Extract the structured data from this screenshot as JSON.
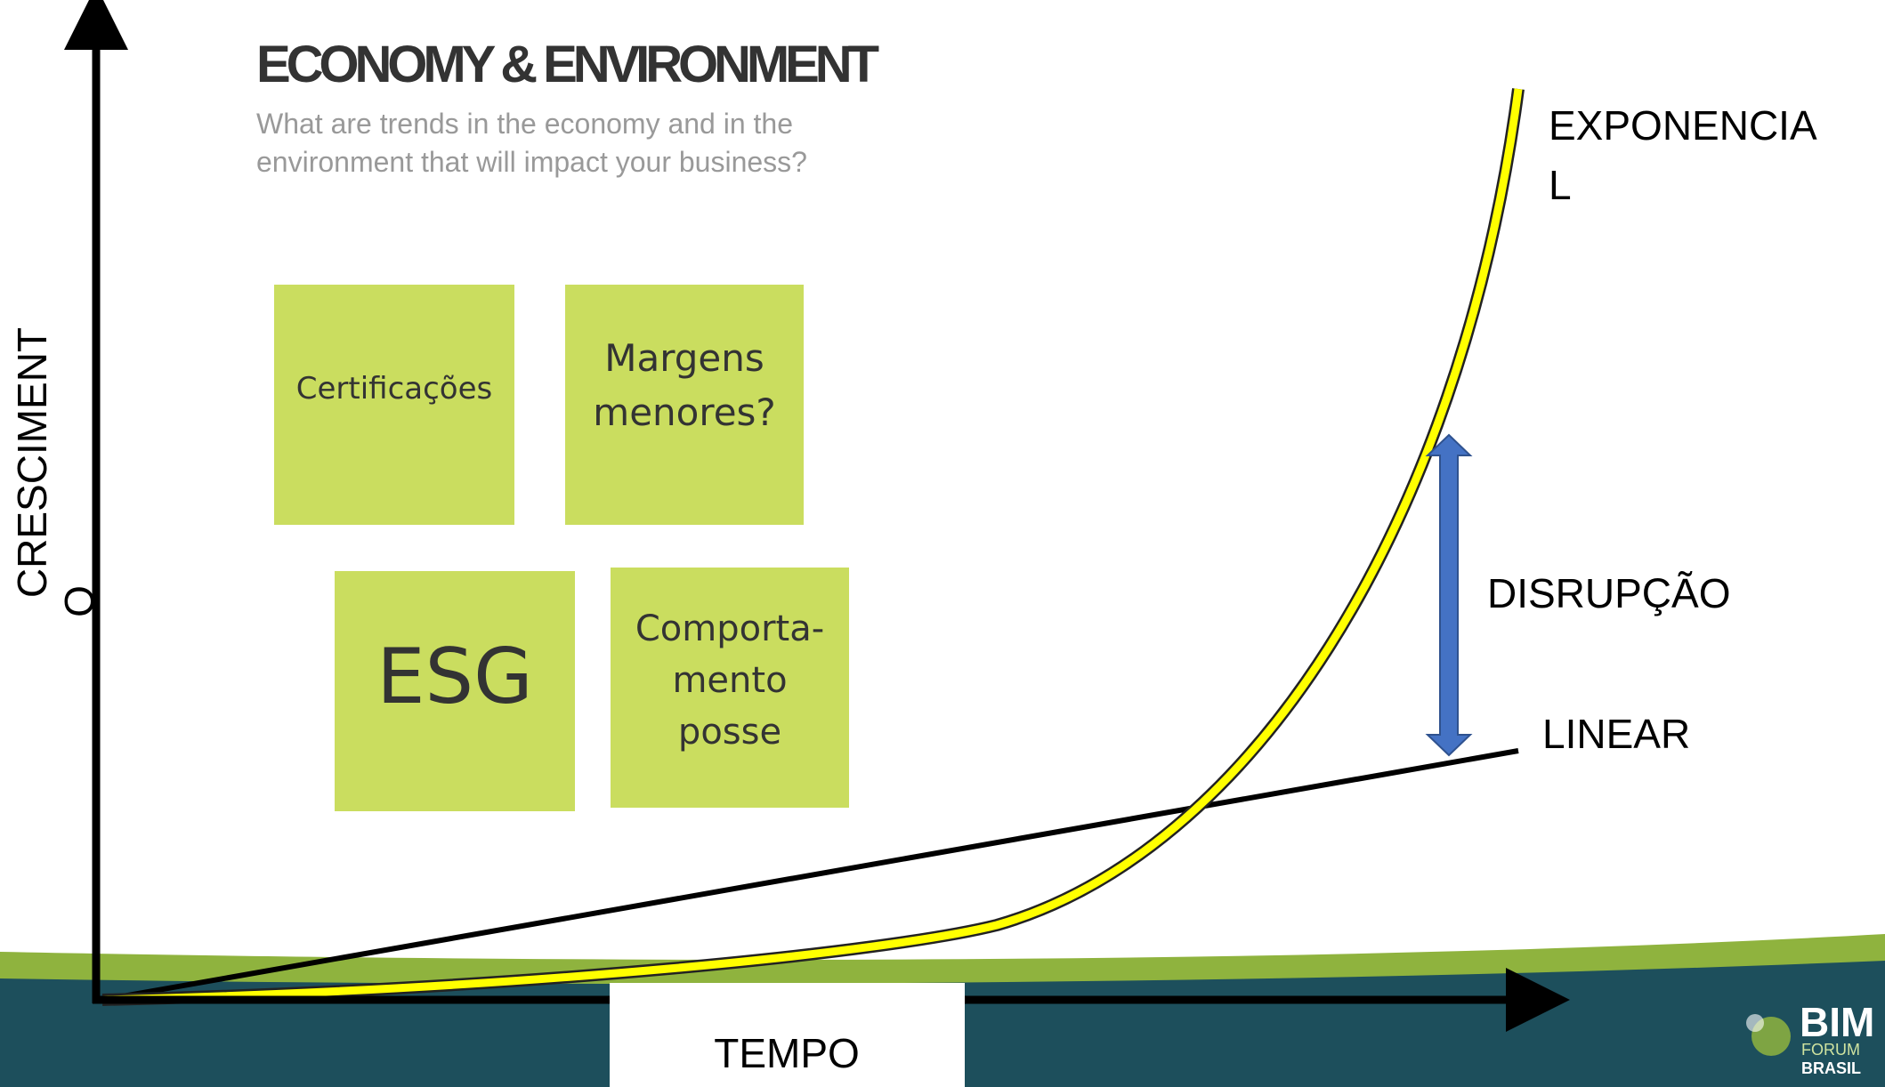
{
  "header": {
    "title": "ECONOMY & ENVIRONMENT",
    "subtitle_lines": [
      "What are trends in the economy and in the",
      "environment that will impact your business?"
    ]
  },
  "notes": [
    {
      "lines": [
        "Certificações"
      ]
    },
    {
      "lines": [
        "Margens",
        "menores?"
      ]
    },
    {
      "lines": [
        "ESG"
      ]
    },
    {
      "lines": [
        "Comporta-",
        "mento",
        "posse"
      ]
    }
  ],
  "axes": {
    "y_label_lines": [
      "CRESCIMENT",
      "O"
    ],
    "x_label": "TEMPO"
  },
  "curves": {
    "exponential_lines": [
      "EXPONENCIA",
      "L"
    ],
    "linear": "LINEAR",
    "gap": "DISRUPÇÃO"
  },
  "logo": {
    "lines": [
      "BIM",
      "FORUM",
      "BRASIL"
    ]
  }
}
